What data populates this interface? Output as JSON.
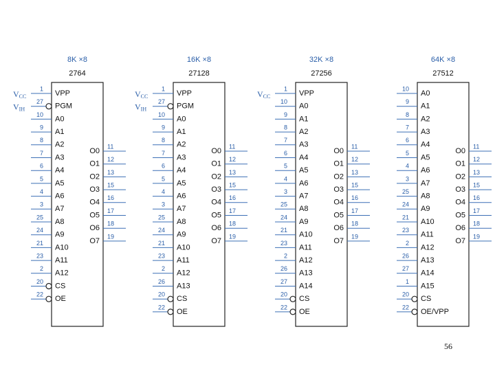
{
  "chips": [
    {
      "size": "8K ×8",
      "name": "2764",
      "supply": [
        {
          "main": "V",
          "sub": "CC"
        },
        {
          "main": "V",
          "sub": "IH"
        }
      ],
      "left": [
        {
          "num": "1",
          "label": "VPP",
          "bubble": false
        },
        {
          "num": "27",
          "label": "PGM",
          "bubble": true
        },
        {
          "num": "10",
          "label": "A0",
          "bubble": false
        },
        {
          "num": "9",
          "label": "A1",
          "bubble": false
        },
        {
          "num": "8",
          "label": "A2",
          "bubble": false
        },
        {
          "num": "7",
          "label": "A3",
          "bubble": false
        },
        {
          "num": "6",
          "label": "A4",
          "bubble": false
        },
        {
          "num": "5",
          "label": "A5",
          "bubble": false
        },
        {
          "num": "4",
          "label": "A6",
          "bubble": false
        },
        {
          "num": "3",
          "label": "A7",
          "bubble": false
        },
        {
          "num": "25",
          "label": "A8",
          "bubble": false
        },
        {
          "num": "24",
          "label": "A9",
          "bubble": false
        },
        {
          "num": "21",
          "label": "A10",
          "bubble": false
        },
        {
          "num": "23",
          "label": "A11",
          "bubble": false
        },
        {
          "num": "2",
          "label": "A12",
          "bubble": false
        },
        {
          "num": "20",
          "label": "CS",
          "bubble": true
        },
        {
          "num": "22",
          "label": "OE",
          "bubble": true
        }
      ],
      "right": [
        {
          "num": "11",
          "label": "O0"
        },
        {
          "num": "12",
          "label": "O1"
        },
        {
          "num": "13",
          "label": "O2"
        },
        {
          "num": "15",
          "label": "O3"
        },
        {
          "num": "16",
          "label": "O4"
        },
        {
          "num": "17",
          "label": "O5"
        },
        {
          "num": "18",
          "label": "O6"
        },
        {
          "num": "19",
          "label": "O7"
        }
      ]
    },
    {
      "size": "16K ×8",
      "name": "27128",
      "supply": [
        {
          "main": "V",
          "sub": "CC"
        },
        {
          "main": "V",
          "sub": "IH"
        }
      ],
      "left": [
        {
          "num": "1",
          "label": "VPP",
          "bubble": false
        },
        {
          "num": "27",
          "label": "PGM",
          "bubble": true
        },
        {
          "num": "10",
          "label": "A0",
          "bubble": false
        },
        {
          "num": "9",
          "label": "A1",
          "bubble": false
        },
        {
          "num": "8",
          "label": "A2",
          "bubble": false
        },
        {
          "num": "7",
          "label": "A3",
          "bubble": false
        },
        {
          "num": "6",
          "label": "A4",
          "bubble": false
        },
        {
          "num": "5",
          "label": "A5",
          "bubble": false
        },
        {
          "num": "4",
          "label": "A6",
          "bubble": false
        },
        {
          "num": "3",
          "label": "A7",
          "bubble": false
        },
        {
          "num": "25",
          "label": "A8",
          "bubble": false
        },
        {
          "num": "24",
          "label": "A9",
          "bubble": false
        },
        {
          "num": "21",
          "label": "A10",
          "bubble": false
        },
        {
          "num": "23",
          "label": "A11",
          "bubble": false
        },
        {
          "num": "2",
          "label": "A12",
          "bubble": false
        },
        {
          "num": "26",
          "label": "A13",
          "bubble": false
        },
        {
          "num": "20",
          "label": "CS",
          "bubble": true
        },
        {
          "num": "22",
          "label": "OE",
          "bubble": true
        }
      ],
      "right": [
        {
          "num": "11",
          "label": "O0"
        },
        {
          "num": "12",
          "label": "O1"
        },
        {
          "num": "13",
          "label": "O2"
        },
        {
          "num": "15",
          "label": "O3"
        },
        {
          "num": "16",
          "label": "O4"
        },
        {
          "num": "17",
          "label": "O5"
        },
        {
          "num": "18",
          "label": "O6"
        },
        {
          "num": "19",
          "label": "O7"
        }
      ]
    },
    {
      "size": "32K ×8",
      "name": "27256",
      "supply": [
        {
          "main": "V",
          "sub": "CC"
        }
      ],
      "left": [
        {
          "num": "1",
          "label": "VPP",
          "bubble": false
        },
        {
          "num": "10",
          "label": "A0",
          "bubble": false
        },
        {
          "num": "9",
          "label": "A1",
          "bubble": false
        },
        {
          "num": "8",
          "label": "A2",
          "bubble": false
        },
        {
          "num": "7",
          "label": "A3",
          "bubble": false
        },
        {
          "num": "6",
          "label": "A4",
          "bubble": false
        },
        {
          "num": "5",
          "label": "A5",
          "bubble": false
        },
        {
          "num": "4",
          "label": "A6",
          "bubble": false
        },
        {
          "num": "3",
          "label": "A7",
          "bubble": false
        },
        {
          "num": "25",
          "label": "A8",
          "bubble": false
        },
        {
          "num": "24",
          "label": "A9",
          "bubble": false
        },
        {
          "num": "21",
          "label": "A10",
          "bubble": false
        },
        {
          "num": "23",
          "label": "A11",
          "bubble": false
        },
        {
          "num": "2",
          "label": "A12",
          "bubble": false
        },
        {
          "num": "26",
          "label": "A13",
          "bubble": false
        },
        {
          "num": "27",
          "label": "A14",
          "bubble": false
        },
        {
          "num": "20",
          "label": "CS",
          "bubble": true
        },
        {
          "num": "22",
          "label": "OE",
          "bubble": true
        }
      ],
      "right": [
        {
          "num": "11",
          "label": "O0"
        },
        {
          "num": "12",
          "label": "O1"
        },
        {
          "num": "13",
          "label": "O2"
        },
        {
          "num": "15",
          "label": "O3"
        },
        {
          "num": "16",
          "label": "O4"
        },
        {
          "num": "17",
          "label": "O5"
        },
        {
          "num": "18",
          "label": "O6"
        },
        {
          "num": "19",
          "label": "O7"
        }
      ]
    },
    {
      "size": "64K ×8",
      "name": "27512",
      "supply": [],
      "left": [
        {
          "num": "10",
          "label": "A0",
          "bubble": false
        },
        {
          "num": "9",
          "label": "A1",
          "bubble": false
        },
        {
          "num": "8",
          "label": "A2",
          "bubble": false
        },
        {
          "num": "7",
          "label": "A3",
          "bubble": false
        },
        {
          "num": "6",
          "label": "A4",
          "bubble": false
        },
        {
          "num": "5",
          "label": "A5",
          "bubble": false
        },
        {
          "num": "4",
          "label": "A6",
          "bubble": false
        },
        {
          "num": "3",
          "label": "A7",
          "bubble": false
        },
        {
          "num": "25",
          "label": "A8",
          "bubble": false
        },
        {
          "num": "24",
          "label": "A9",
          "bubble": false
        },
        {
          "num": "21",
          "label": "A10",
          "bubble": false
        },
        {
          "num": "23",
          "label": "A11",
          "bubble": false
        },
        {
          "num": "2",
          "label": "A12",
          "bubble": false
        },
        {
          "num": "26",
          "label": "A13",
          "bubble": false
        },
        {
          "num": "27",
          "label": "A14",
          "bubble": false
        },
        {
          "num": "1",
          "label": "A15",
          "bubble": false
        },
        {
          "num": "20",
          "label": "CS",
          "bubble": true
        },
        {
          "num": "22",
          "label": "OE/VPP",
          "bubble": true
        }
      ],
      "right": [
        {
          "num": "11",
          "label": "O0"
        },
        {
          "num": "12",
          "label": "O1"
        },
        {
          "num": "13",
          "label": "O2"
        },
        {
          "num": "15",
          "label": "O3"
        },
        {
          "num": "16",
          "label": "O4"
        },
        {
          "num": "17",
          "label": "O5"
        },
        {
          "num": "18",
          "label": "O6"
        },
        {
          "num": "19",
          "label": "O7"
        }
      ]
    }
  ],
  "page_number": "56"
}
